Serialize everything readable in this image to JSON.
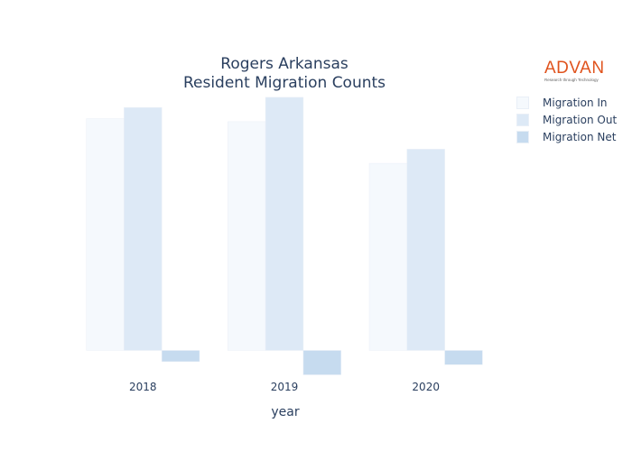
{
  "chart_data": {
    "type": "bar",
    "title_lines": [
      "Rogers Arkansas",
      "Resident Migration Counts"
    ],
    "xlabel": "year",
    "ylabel": "",
    "categories": [
      "2018",
      "2019",
      "2020"
    ],
    "series": [
      {
        "name": "Migration In",
        "color": "#f5f9fd",
        "values": [
          11400,
          11250,
          9200
        ]
      },
      {
        "name": "Migration Out",
        "color": "#dde9f6",
        "values": [
          11950,
          12450,
          9900
        ]
      },
      {
        "name": "Migration Net",
        "color": "#c6dbef",
        "values": [
          -550,
          -1200,
          -700
        ]
      }
    ],
    "ylim": [
      -1400,
      12800
    ],
    "y_tick_labels_shown": false,
    "grid": false,
    "legend_position": "right"
  },
  "logo": {
    "name": "ADVAN",
    "tagline": "Research through Technology"
  }
}
